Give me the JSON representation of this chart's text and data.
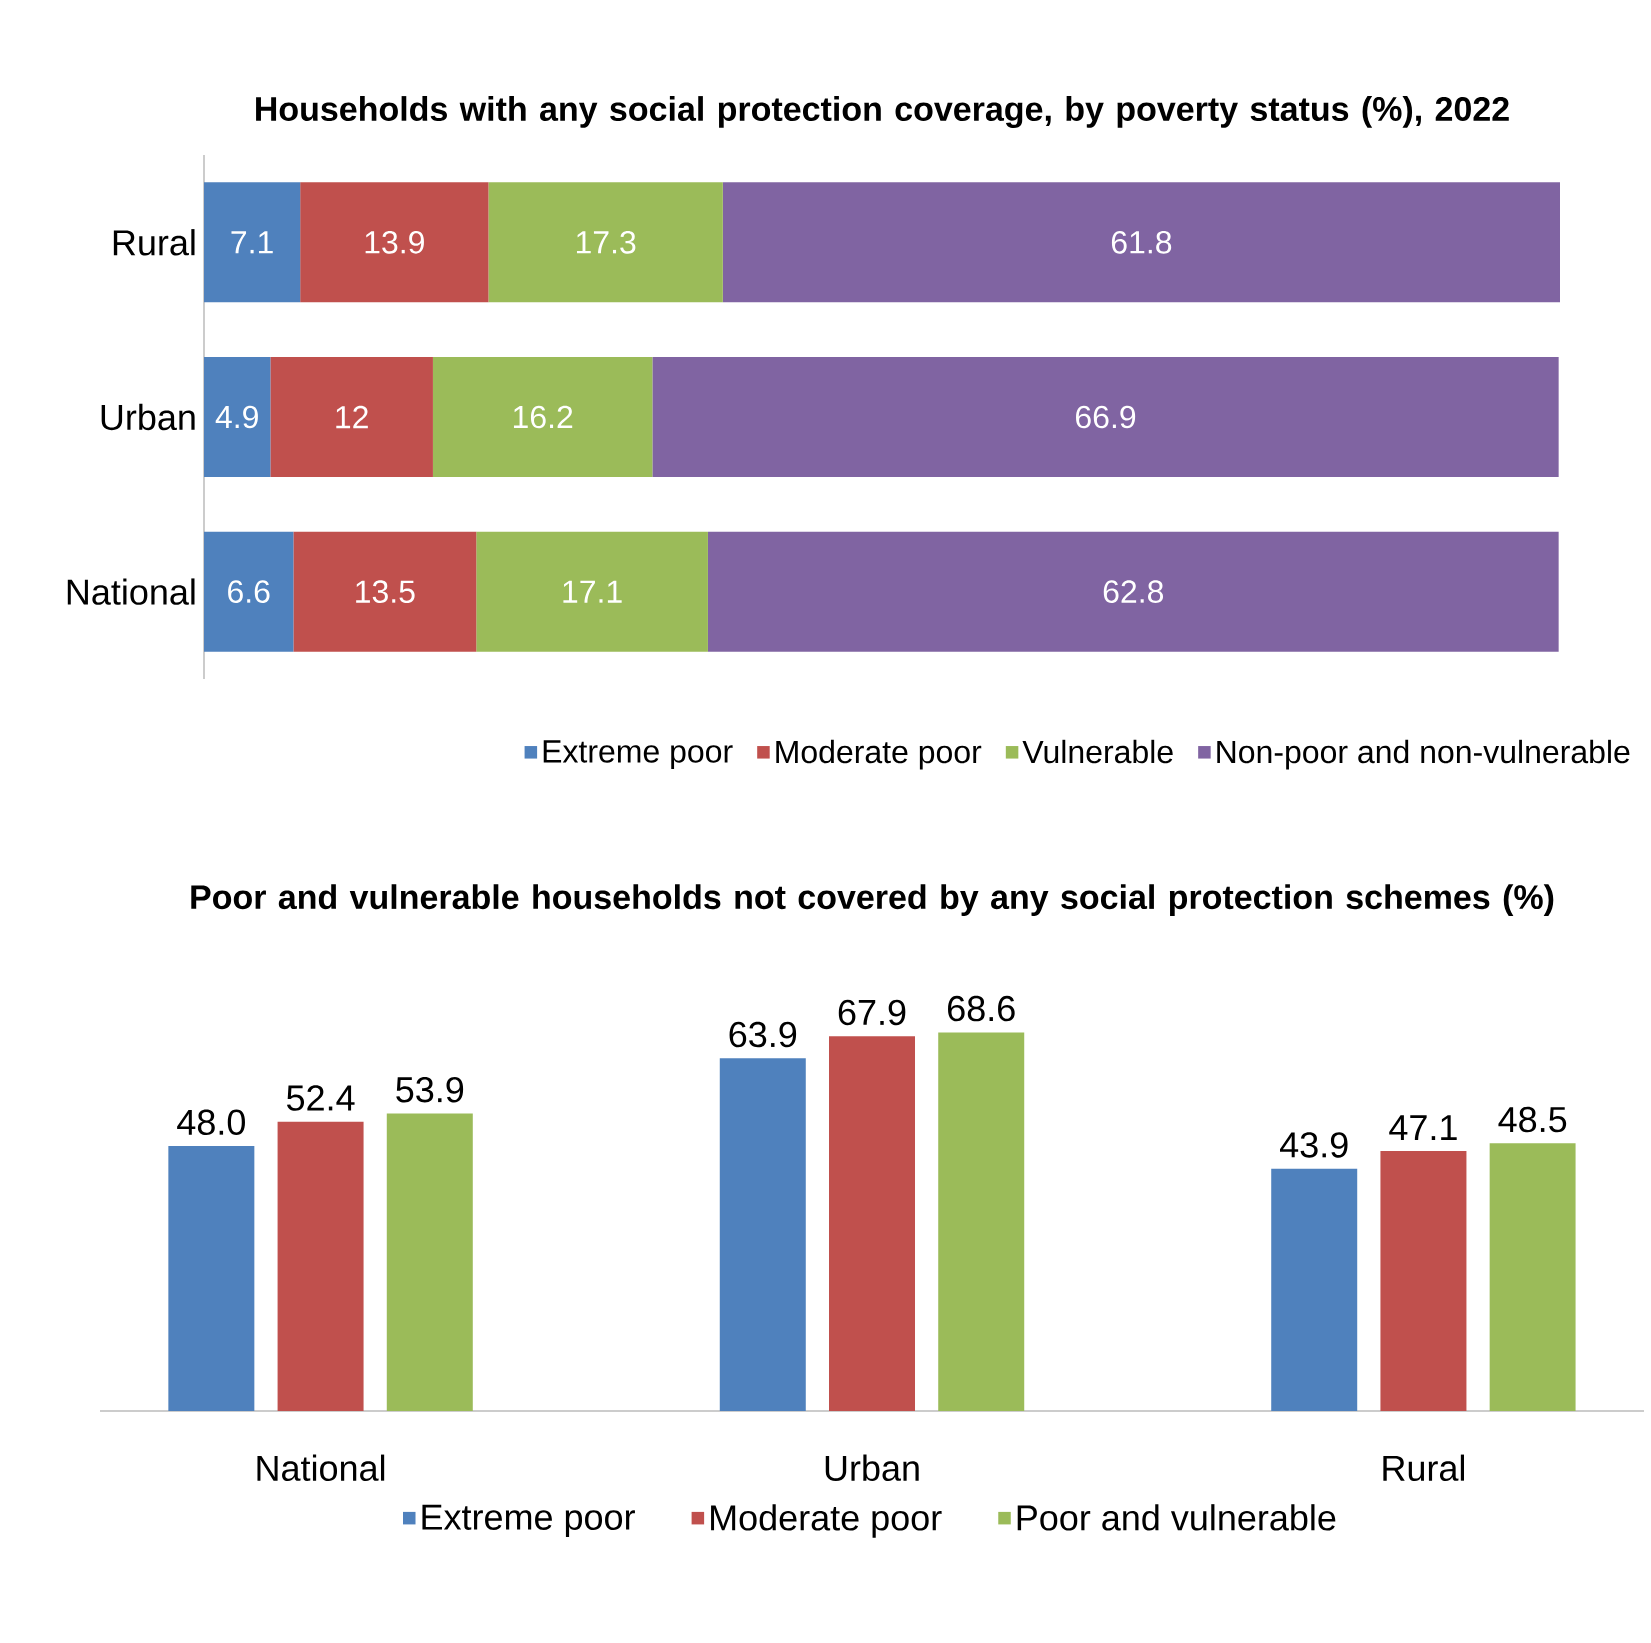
{
  "chart_data": [
    {
      "type": "bar",
      "orientation": "horizontal",
      "stacked": true,
      "title": "Households with any social protection coverage, by poverty status (%), 2022",
      "categories": [
        "Rural",
        "Urban",
        "National"
      ],
      "data_labels": true,
      "legend": "bottom",
      "tick_labels": "y",
      "series": [
        {
          "name": "Extreme poor",
          "color": "#4f81bd",
          "values": [
            7.1,
            4.9,
            6.6
          ]
        },
        {
          "name": "Moderate poor",
          "color": "#c0504d",
          "values": [
            13.9,
            12,
            13.5
          ]
        },
        {
          "name": "Vulnerable",
          "color": "#9bbb59",
          "values": [
            17.3,
            16.2,
            17.1
          ]
        },
        {
          "name": "Non-poor and non-vulnerable",
          "color": "#8064a2",
          "values": [
            61.8,
            66.9,
            62.8
          ]
        }
      ]
    },
    {
      "type": "bar",
      "title": "Poor and vulnerable households not covered by any social protection schemes (%)",
      "categories": [
        "National",
        "Urban",
        "Rural"
      ],
      "legend": "bottom",
      "tick_labels": "x",
      "series": [
        {
          "name": "Extreme poor",
          "color": "#4f81bd",
          "values": [
            48.0,
            63.9,
            43.9
          ],
          "value_labels": [
            "48.0",
            "63.9",
            "43.9"
          ]
        },
        {
          "name": "Moderate poor",
          "color": "#c0504d",
          "values": [
            52.4,
            67.9,
            47.1
          ],
          "value_labels": [
            "52.4",
            "67.9",
            "47.1"
          ]
        },
        {
          "name": "Poor and vulnerable",
          "color": "#9bbb59",
          "values": [
            53.9,
            68.6,
            48.5
          ],
          "value_labels": [
            "53.9",
            "68.6",
            "48.5"
          ]
        }
      ]
    }
  ]
}
